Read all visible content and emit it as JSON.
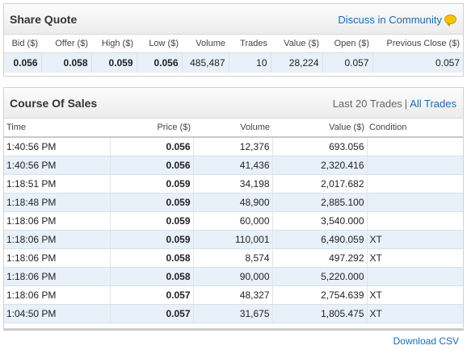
{
  "share_quote": {
    "title": "Share Quote",
    "discuss_label": "Discuss in Community",
    "headers": [
      "Bid ($)",
      "Offer ($)",
      "High ($)",
      "Low ($)",
      "Volume",
      "Trades",
      "Value ($)",
      "Open ($)",
      "Previous Close ($)"
    ],
    "values": [
      "0.056",
      "0.058",
      "0.059",
      "0.056",
      "485,487",
      "10",
      "28,224",
      "0.057",
      "0.057"
    ]
  },
  "course_of_sales": {
    "title": "Course Of Sales",
    "last_label": "Last 20 Trades",
    "separator": "|",
    "all_trades_label": "All Trades",
    "headers": {
      "time": "Time",
      "price": "Price ($)",
      "volume": "Volume",
      "value": "Value ($)",
      "condition": "Condition"
    },
    "rows": [
      {
        "time": "1:40:56 PM",
        "price": "0.056",
        "volume": "12,376",
        "value": "693.056",
        "condition": ""
      },
      {
        "time": "1:40:56 PM",
        "price": "0.056",
        "volume": "41,436",
        "value": "2,320.416",
        "condition": ""
      },
      {
        "time": "1:18:51 PM",
        "price": "0.059",
        "volume": "34,198",
        "value": "2,017.682",
        "condition": ""
      },
      {
        "time": "1:18:48 PM",
        "price": "0.059",
        "volume": "48,900",
        "value": "2,885.100",
        "condition": ""
      },
      {
        "time": "1:18:06 PM",
        "price": "0.059",
        "volume": "60,000",
        "value": "3,540.000",
        "condition": ""
      },
      {
        "time": "1:18:06 PM",
        "price": "0.059",
        "volume": "110,001",
        "value": "6,490.059",
        "condition": "XT"
      },
      {
        "time": "1:18:06 PM",
        "price": "0.058",
        "volume": "8,574",
        "value": "497.292",
        "condition": "XT"
      },
      {
        "time": "1:18:06 PM",
        "price": "0.058",
        "volume": "90,000",
        "value": "5,220.000",
        "condition": ""
      },
      {
        "time": "1:18:06 PM",
        "price": "0.057",
        "volume": "48,327",
        "value": "2,754.639",
        "condition": "XT"
      },
      {
        "time": "1:04:50 PM",
        "price": "0.057",
        "volume": "31,675",
        "value": "1,805.475",
        "condition": "XT"
      }
    ]
  },
  "footer": {
    "download_label": "Download CSV"
  },
  "colors": {
    "link": "#1a6bb5",
    "row_alt": "#e8f0f9",
    "icon": "#f5c400"
  }
}
